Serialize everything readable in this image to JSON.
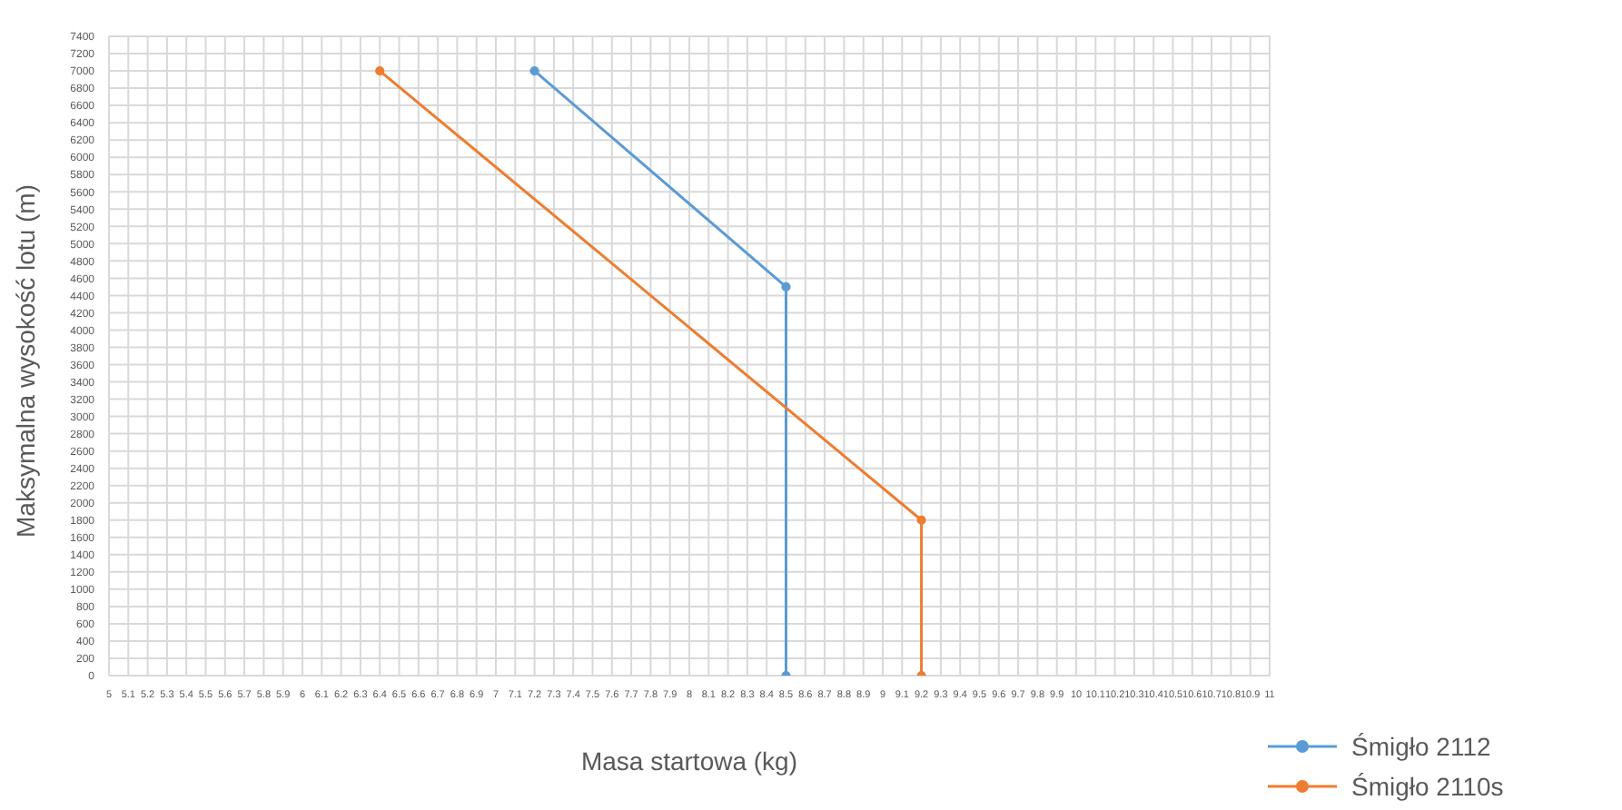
{
  "chart_data": {
    "type": "line",
    "xlabel": "Masa startowa (kg)",
    "ylabel": "Maksymalna wysokość lotu (m)",
    "series": [
      {
        "name": "Śmigło 2112",
        "color": "#5b9bd5",
        "x": [
          7.2,
          8.5,
          8.5
        ],
        "values": [
          7000,
          4500,
          0
        ]
      },
      {
        "name": "Śmigło 2110s",
        "color": "#ed7d31",
        "x": [
          6.4,
          9.2,
          9.2
        ],
        "values": [
          7000,
          1800,
          0
        ]
      }
    ],
    "xlim": [
      5,
      11
    ],
    "xticks": [
      5,
      5.1,
      5.2,
      5.3,
      5.4,
      5.5,
      5.6,
      5.7,
      5.8,
      5.9,
      6,
      6.1,
      6.2,
      6.3,
      6.4,
      6.5,
      6.6,
      6.7,
      6.8,
      6.9,
      7,
      7.1,
      7.2,
      7.3,
      7.4,
      7.5,
      7.6,
      7.7,
      7.8,
      7.9,
      8,
      8.1,
      8.2,
      8.3,
      8.4,
      8.5,
      8.6,
      8.7,
      8.8,
      8.9,
      9,
      9.1,
      9.2,
      9.3,
      9.4,
      9.5,
      9.6,
      9.7,
      9.8,
      9.9,
      10,
      10.1,
      10.2,
      10.3,
      10.4,
      10.5,
      10.6,
      10.7,
      10.8,
      10.9,
      11
    ],
    "ylim": [
      0,
      7400
    ],
    "yticks": [
      0,
      200,
      400,
      600,
      800,
      1000,
      1200,
      1400,
      1600,
      1800,
      2000,
      2200,
      2400,
      2600,
      2800,
      3000,
      3200,
      3400,
      3600,
      3800,
      4000,
      4200,
      4400,
      4600,
      4800,
      5000,
      5200,
      5400,
      5600,
      5800,
      6000,
      6200,
      6400,
      6600,
      6800,
      7000,
      7200,
      7400
    ],
    "grid": true,
    "legend": "bottom right",
    "marker": "circle",
    "line_style": "solid"
  }
}
